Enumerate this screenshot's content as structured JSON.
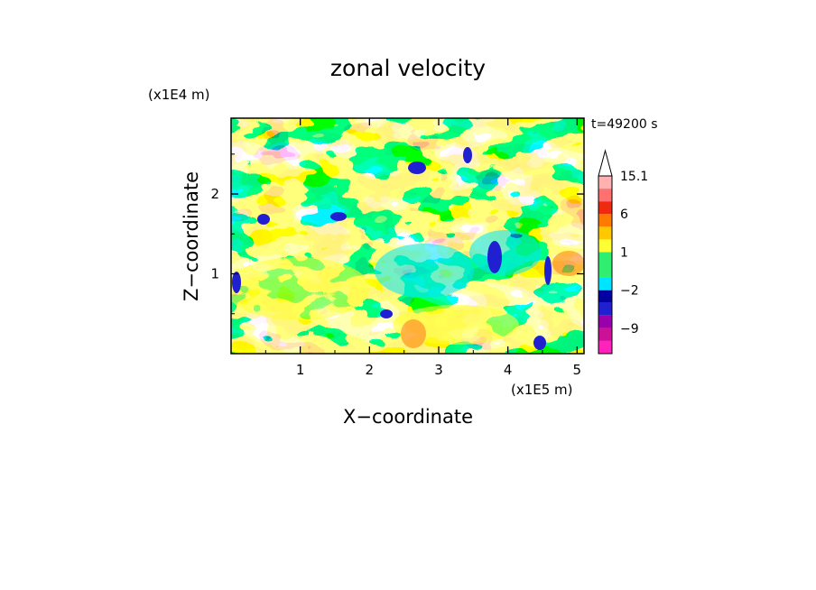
{
  "chart_data": {
    "type": "heatmap",
    "title": "zonal velocity",
    "xlabel": "X−coordinate",
    "ylabel": "Z−coordinate",
    "x_unit": "(x1E5 m)",
    "y_unit": "(x1E4 m)",
    "time_label": "t=49200 s",
    "xlim": [
      0,
      5.1
    ],
    "ylim": [
      0,
      2.95
    ],
    "x_ticks": [
      "1",
      "2",
      "3",
      "4",
      "5"
    ],
    "x_tick_values": [
      1,
      2,
      3,
      4,
      5
    ],
    "y_ticks": [
      "1",
      "2"
    ],
    "y_tick_values": [
      1,
      2
    ],
    "colorbar": {
      "labels": [
        "15.1",
        "6",
        "1",
        "−2",
        "−9"
      ],
      "label_values": [
        15.1,
        6,
        1,
        -2,
        -9
      ],
      "levels": [
        -15,
        -12,
        -9,
        -6,
        -4,
        -2,
        -1,
        0,
        1,
        2,
        4,
        6,
        9,
        12,
        15.1
      ],
      "colors": [
        "#ff22bb",
        "#cc1199",
        "#9900aa",
        "#2020d0",
        "#0000a0",
        "#00e5ff",
        "#30ee70",
        "#30ee70",
        "#ffff33",
        "#ffc800",
        "#ff7a00",
        "#ee2a10",
        "#ff7070",
        "#ffb0b0",
        "#ffffff"
      ],
      "extend": "max"
    },
    "grid": false
  }
}
